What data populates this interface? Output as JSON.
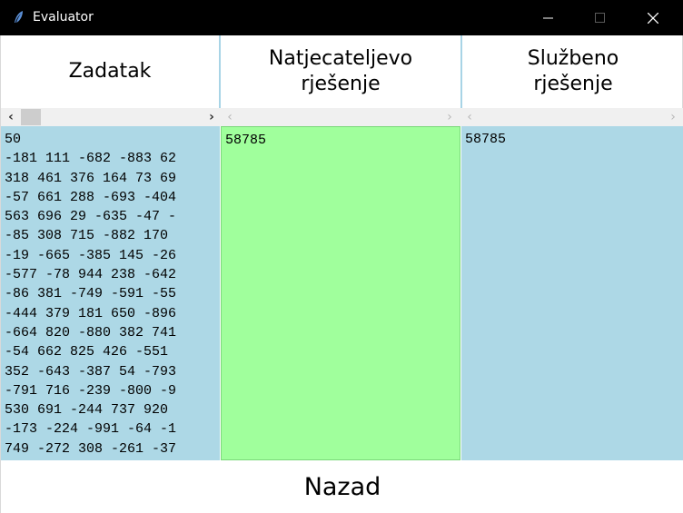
{
  "window": {
    "title": "Evaluator",
    "icon": "feather-icon",
    "controls": [
      "minimize-icon",
      "maximize-icon",
      "close-icon"
    ]
  },
  "columns": {
    "task": {
      "header": "Zadatak"
    },
    "contestant": {
      "header": "Natjecateljevo\nrješenje"
    },
    "official": {
      "header": "Službeno\nrješenje"
    }
  },
  "scrollbars": {
    "left_arrow": "‹",
    "right_arrow": "›"
  },
  "task_lines": [
    "50",
    "-181 111 -682 -883 62",
    "318 461 376 164 73 69",
    "-57 661 288 -693 -404",
    "563 696 29 -635 -47 -",
    "-85 308 715 -882 170 ",
    "-19 -665 -385 145 -26",
    "-577 -78 944 238 -642",
    "-86 381 -749 -591 -55",
    "-444 379 181 650 -896",
    "-664 820 -880 382 741",
    "-54 662 825 426 -551 ",
    "352 -643 -387 54 -793",
    "-791 716 -239 -800 -9",
    "530 691 -244 737 920 ",
    "-173 -224 -991 -64 -1",
    "749 -272 308 -261 -37"
  ],
  "contestant_output": "58785",
  "official_output": "58785",
  "back_button": {
    "label": "Nazad"
  },
  "colors": {
    "titlebar": "#000000",
    "task_bg": "#add8e6",
    "contestant_bg_correct": "#a0ff9c",
    "official_bg": "#add8e6"
  }
}
